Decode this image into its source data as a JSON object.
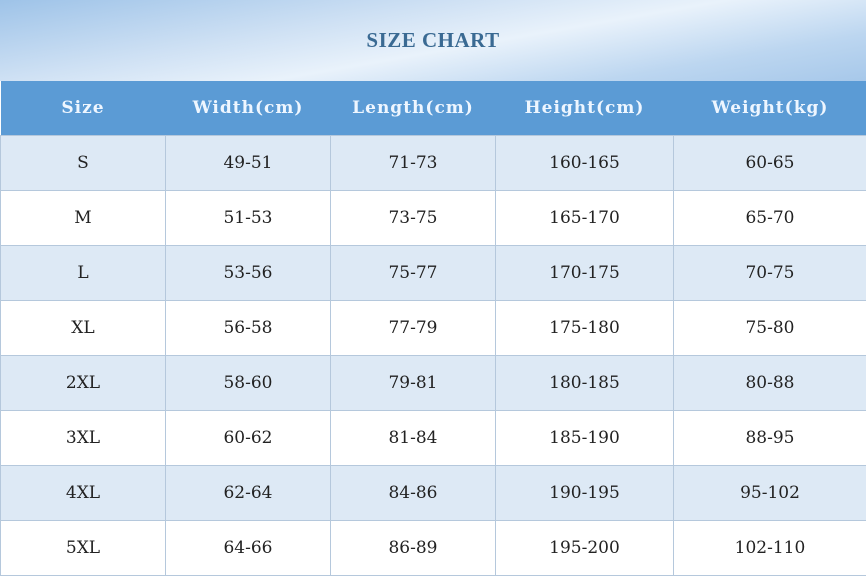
{
  "title": "SIZE CHART",
  "headers": [
    "Size",
    "Width(cm)",
    "Length(cm)",
    "Height(cm)",
    "Weight(kg)"
  ],
  "rows": [
    [
      "S",
      "49-51",
      "71-73",
      "160-165",
      "60-65"
    ],
    [
      "M",
      "51-53",
      "73-75",
      "165-170",
      "65-70"
    ],
    [
      "L",
      "53-56",
      "75-77",
      "170-175",
      "70-75"
    ],
    [
      "XL",
      "56-58",
      "77-79",
      "175-180",
      "75-80"
    ],
    [
      "2XL",
      "58-60",
      "79-81",
      "180-185",
      "80-88"
    ],
    [
      "3XL",
      "60-62",
      "81-84",
      "185-190",
      "88-95"
    ],
    [
      "4XL",
      "62-64",
      "84-86",
      "190-195",
      "95-102"
    ],
    [
      "5XL",
      "64-66",
      "86-89",
      "195-200",
      "102-110"
    ]
  ],
  "colors": {
    "header": "#5b9bd5",
    "stripe": "#dde9f5",
    "title": "#3a6a93"
  }
}
